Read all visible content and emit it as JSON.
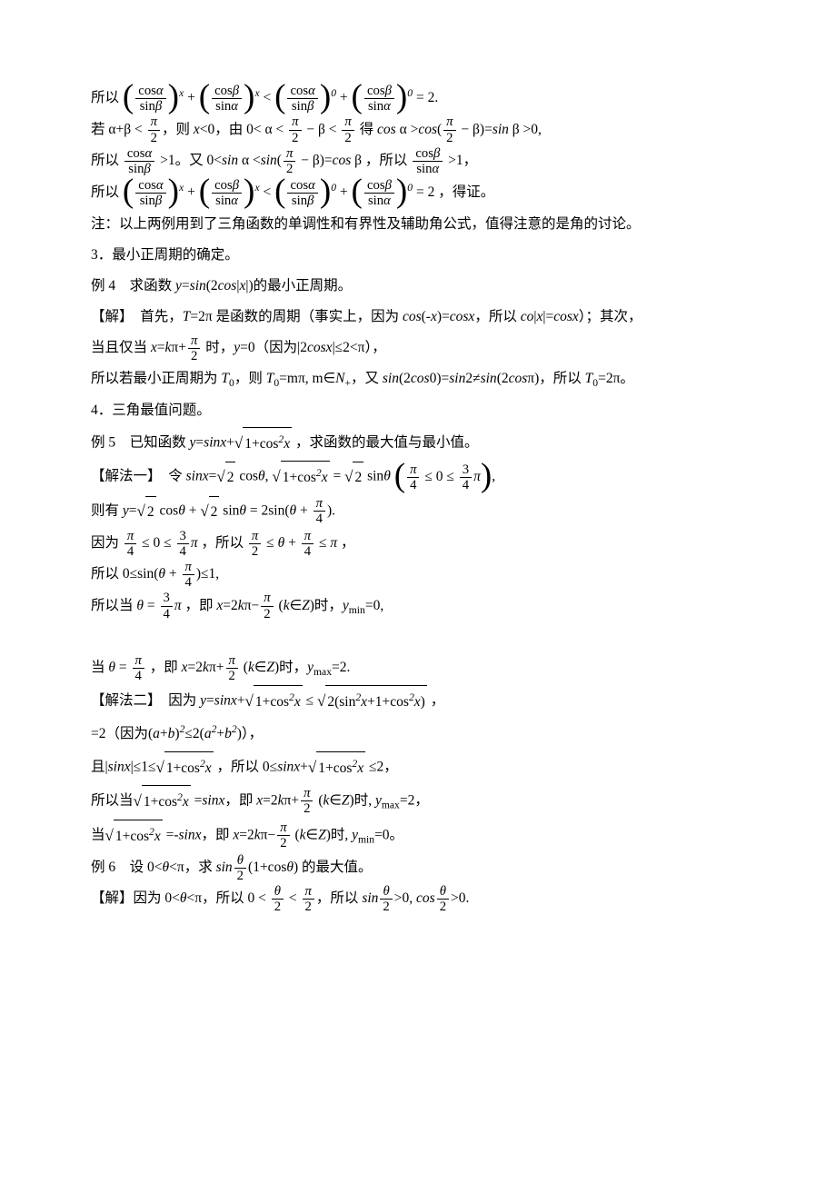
{
  "p1_pre": "所以",
  "p1_expr": "(cosα/sinβ)^x + (cosβ/sinα)^x < (cosα/sinβ)^0 + (cosβ/sinα)^0 = 2.",
  "p2a": "若 α+β < π/2，则 x<0，由 0< α < π/2 − β < π/2 得 cos α >cos(π/2 − β)=sin β >0,",
  "p3a": "所以 cosα/sinβ >1。又 0<sin α <sin(π/2 − β)=cos β，所以 cosβ/sinα >1，",
  "p4_pre": "所以",
  "p4_expr": "(cosα/sinβ)^x + (cosβ/sinα)^x < (cosα/sinβ)^0 + (cosβ/sinα)^0 = 2 ，得证。",
  "p5": "注：以上两例用到了三角函数的单调性和有界性及辅助角公式，值得注意的是角的讨论。",
  "p6": "3．最小正周期的确定。",
  "p7": "例 4　求函数 y=sin(2cos|x|)的最小正周期。",
  "p8": "【解】　首先，T=2π是函数的周期（事实上，因为 cos(-x)=cosx，所以 co|x|=cosx）；其次，",
  "p9": "当且仅当 x=kπ+π/2 时，y=0（因为|2cosx|≤2<π），",
  "p10": "所以若最小正周期为 T₀，则 T₀=mπ, m∈N₊，又 sin(2cos0)=sin2≠sin(2cosπ)，所以 T₀=2π。",
  "p11": "4．三角最值问题。",
  "p12": "例 5　已知函数 y=sinx+√(1+cos²x)，求函数的最大值与最小值。",
  "p13": "【解法一】　令 sinx=√2 cosθ, √(1+cos²x)=√2 sinθ (π/4 ≤ 0 ≤ 3π/4),",
  "p14": "则有 y=√2 cosθ + √2 sinθ = 2sin(θ + π/4).",
  "p15": "因为 π/4 ≤ 0 ≤ 3π/4，所以 π/2 ≤ θ + π/4 ≤ π，",
  "p16": "所以 0≤sin(θ + π/4)≤1,",
  "p17": "所以当 θ=3π/4，即 x=2kπ−π/2 (k∈Z)时，yₘᵢₙ=0,",
  "p18": "当 θ=π/4，即 x=2kπ+π/2 (k∈Z)时，yₘₐₓ=2.",
  "p19": "【解法二】　因为 y=sinx+√(1+cos²x) ≤ √(2(sin²x+1+cos²x))，",
  "p20": "=2（因为(a+b)²≤2(a²+b²)），",
  "p21": "且|sinx|≤1≤√(1+cos²x)，所以 0≤sinx+√(1+cos²x)≤2，",
  "p22": "所以当√(1+cos²x)=sinx，即 x=2kπ+π/2 (k∈Z)时, yₘₐₓ=2，",
  "p23": "当√(1+cos²x)=-sinx，即 x=2kπ−π/2 (k∈Z)时, yₘᵢₙ=0。",
  "p24": "例 6　设 0<θ<π，求 sin(θ/2)(1+cosθ) 的最大值。",
  "p25": "【解】因为 0<θ<π，所以 0<θ/2<π/2，所以 sin(θ/2)>0, cos(θ/2)>0."
}
